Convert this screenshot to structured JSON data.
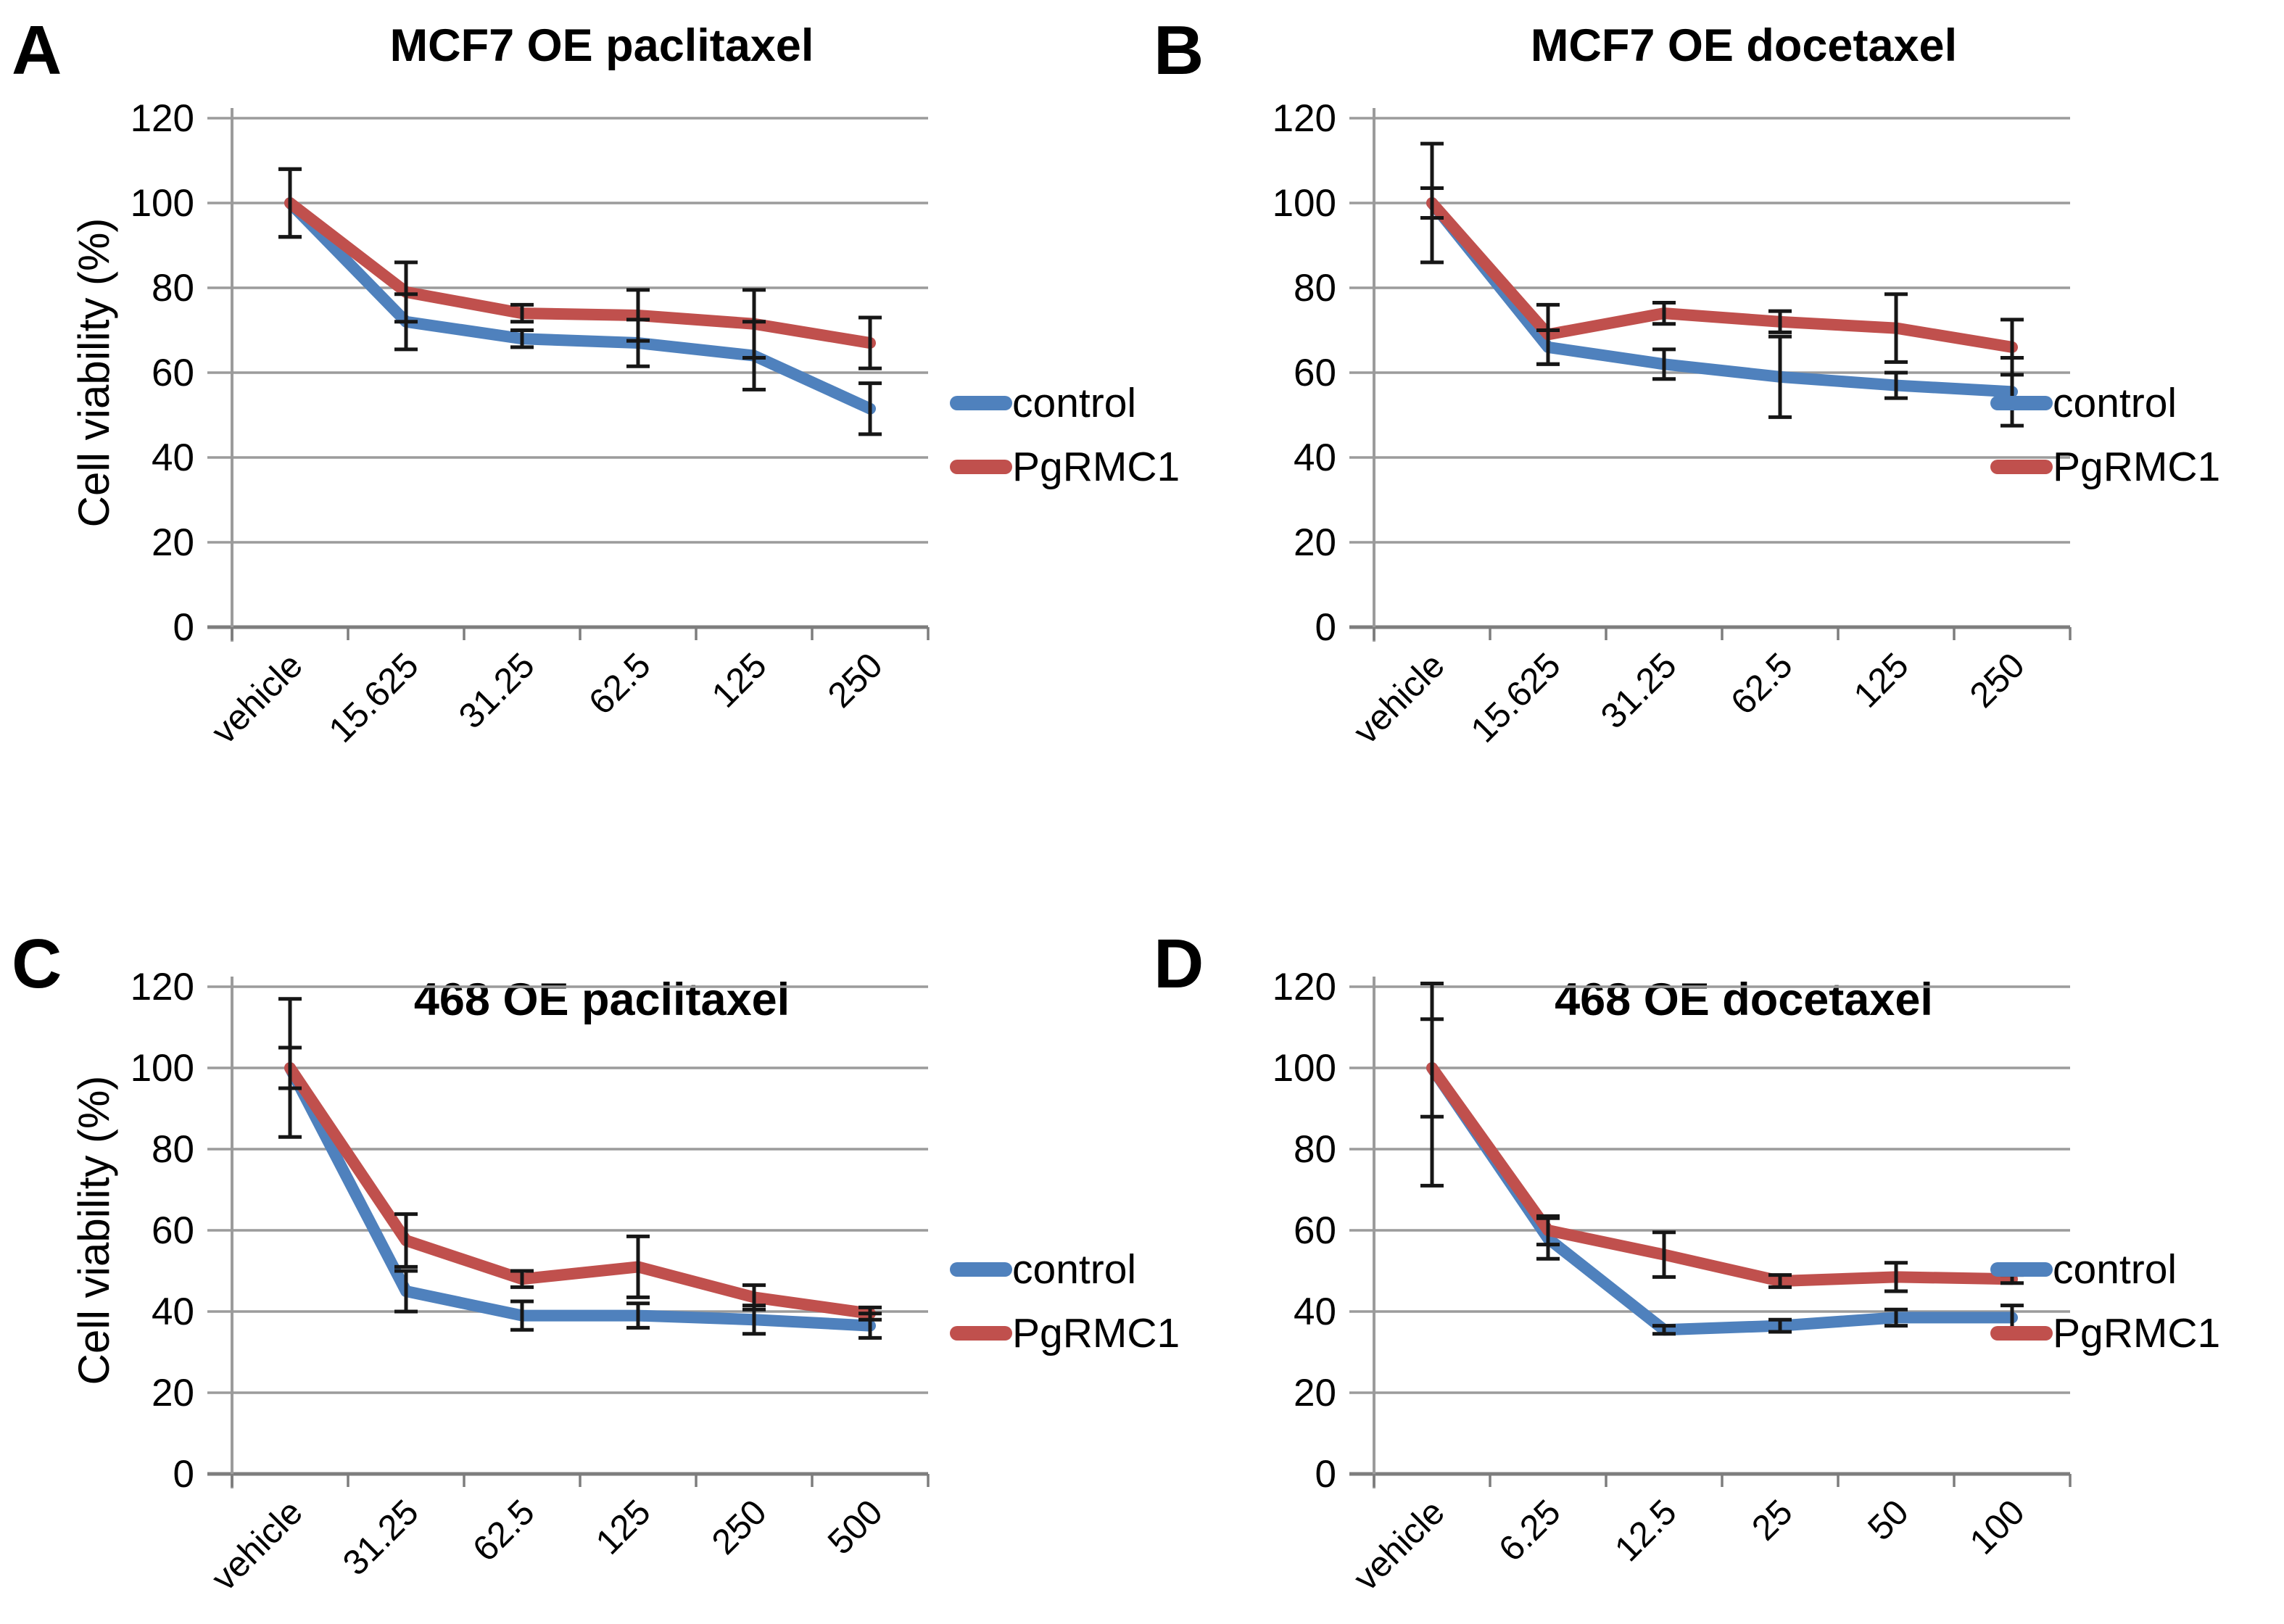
{
  "figure": {
    "background": "#ffffff",
    "description_visible_text_only": true
  },
  "style": {
    "grid_color": "#9b9b9b",
    "axis_color": "#7d7d7d",
    "error_bar_color": "#161616",
    "text_color": "#000000",
    "control_color": "#4F81BD",
    "pgrmc1_color": "#C0504D"
  },
  "chart_data": [
    {
      "panel_label": "A",
      "type": "line",
      "title": "MCF7 OE paclitaxel",
      "ylabel": "Cell viability (%)",
      "xlabel": "",
      "categories": [
        "vehicle",
        "15.625",
        "31.25",
        "62.5",
        "125",
        "250"
      ],
      "ylim": [
        0,
        120
      ],
      "ytick_step": 20,
      "yticks": [
        0,
        20,
        40,
        60,
        80,
        100,
        120
      ],
      "grid": true,
      "legend_position": "right",
      "error_bars": true,
      "series": [
        {
          "name": "control",
          "color": "#4F81BD",
          "values": [
            100,
            72,
            68,
            67,
            64,
            51.5
          ],
          "errors": [
            8,
            6.5,
            2,
            5.5,
            8,
            6
          ]
        },
        {
          "name": "PgRMC1",
          "color": "#C0504D",
          "values": [
            100,
            79,
            74,
            73.5,
            71.5,
            67
          ],
          "errors": [
            8,
            7,
            2,
            6,
            8,
            6
          ]
        }
      ]
    },
    {
      "panel_label": "B",
      "type": "line",
      "title": "MCF7 OE docetaxel",
      "ylabel": "",
      "xlabel": "",
      "categories": [
        "vehicle",
        "15.625",
        "31.25",
        "62.5",
        "125",
        "250"
      ],
      "ylim": [
        0,
        120
      ],
      "ytick_step": 20,
      "yticks": [
        0,
        20,
        40,
        60,
        80,
        100,
        120
      ],
      "grid": true,
      "legend_position": "right",
      "error_bars": true,
      "series": [
        {
          "name": "control",
          "color": "#4F81BD",
          "values": [
            100,
            66,
            62,
            59,
            57,
            55.5
          ],
          "errors": [
            3.5,
            4,
            3.5,
            9.5,
            3,
            8
          ]
        },
        {
          "name": "PgRMC1",
          "color": "#C0504D",
          "values": [
            100,
            69,
            74,
            72,
            70.5,
            66
          ],
          "errors": [
            14,
            7,
            2.5,
            2.5,
            8,
            6.5
          ]
        }
      ]
    },
    {
      "panel_label": "C",
      "type": "line",
      "title": "468 OE paclitaxel",
      "ylabel": "Cell viability (%)",
      "xlabel": "",
      "categories": [
        "vehicle",
        "31.25",
        "62.5",
        "125",
        "250",
        "500"
      ],
      "ylim": [
        0,
        120
      ],
      "ytick_step": 20,
      "yticks": [
        0,
        20,
        40,
        60,
        80,
        100,
        120
      ],
      "grid": true,
      "legend_position": "right",
      "error_bars": true,
      "series": [
        {
          "name": "control",
          "color": "#4F81BD",
          "values": [
            100,
            45,
            39,
            39,
            38,
            36.5
          ],
          "errors": [
            5,
            5,
            3.5,
            3,
            3.5,
            3
          ]
        },
        {
          "name": "PgRMC1",
          "color": "#C0504D",
          "values": [
            100,
            57.5,
            48,
            51,
            43.5,
            39.5
          ],
          "errors": [
            17,
            6.5,
            2,
            7.5,
            3,
            1.5
          ]
        }
      ]
    },
    {
      "panel_label": "D",
      "type": "line",
      "title": "468 OE docetaxel",
      "ylabel": "",
      "xlabel": "",
      "categories": [
        "vehicle",
        "6.25",
        "12.5",
        "25",
        "50",
        "100"
      ],
      "ylim": [
        0,
        120
      ],
      "ytick_step": 20,
      "yticks": [
        0,
        20,
        40,
        60,
        80,
        100,
        120
      ],
      "grid": true,
      "legend_position": "right",
      "error_bars": true,
      "series": [
        {
          "name": "control",
          "color": "#4F81BD",
          "values": [
            100,
            58,
            35.5,
            36.5,
            38.5,
            38.5
          ],
          "errors": [
            29,
            5,
            1,
            1.5,
            2,
            3
          ]
        },
        {
          "name": "PgRMC1",
          "color": "#C0504D",
          "values": [
            100,
            60,
            54,
            47.5,
            48.5,
            48
          ],
          "errors": [
            12,
            3.5,
            5.5,
            1.5,
            3.5,
            1
          ]
        }
      ]
    }
  ]
}
